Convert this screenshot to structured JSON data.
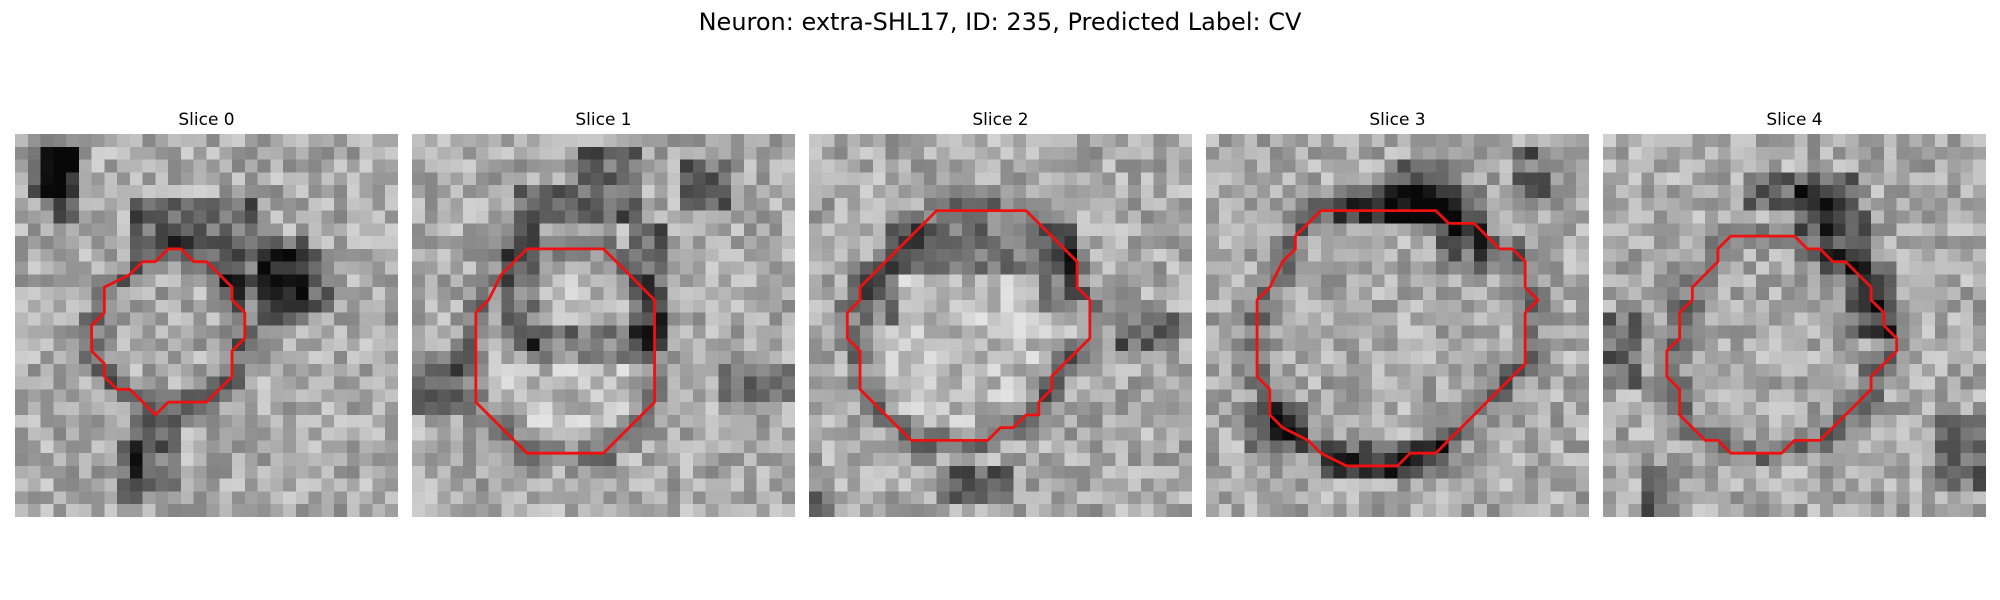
{
  "figure": {
    "title": "Neuron: extra-SHL17, ID: 235, Predicted Label: CV",
    "contour_color": "#ee1111"
  },
  "panels": [
    {
      "title": "Slice 0",
      "image_description_key": "grayscale-em-patch",
      "contour": [
        [
          12,
          9
        ],
        [
          13,
          9
        ],
        [
          14,
          10
        ],
        [
          15,
          10
        ],
        [
          17,
          12
        ],
        [
          17,
          13
        ],
        [
          18,
          14
        ],
        [
          18,
          16
        ],
        [
          17,
          17
        ],
        [
          17,
          19
        ],
        [
          15,
          21
        ],
        [
          12,
          21
        ],
        [
          11,
          22
        ],
        [
          10,
          21
        ],
        [
          9,
          20
        ],
        [
          8,
          20
        ],
        [
          7,
          19
        ],
        [
          7,
          18
        ],
        [
          6,
          17
        ],
        [
          6,
          15
        ],
        [
          7,
          14
        ],
        [
          7,
          12
        ],
        [
          9,
          11
        ],
        [
          10,
          10
        ],
        [
          11,
          10
        ]
      ],
      "darkness": [
        [
          2,
          0,
          2,
          6
        ],
        [
          3,
          1,
          2,
          6
        ],
        [
          1,
          1,
          4,
          4
        ],
        [
          19,
          8,
          4,
          7
        ],
        [
          20,
          9,
          5,
          5
        ],
        [
          16,
          9,
          4,
          4
        ],
        [
          9,
          22,
          4,
          6
        ],
        [
          8,
          24,
          2,
          5
        ],
        [
          9,
          5,
          10,
          4
        ],
        [
          0,
          0,
          0,
          0
        ]
      ]
    },
    {
      "title": "Slice 1",
      "image_description_key": "grayscale-em-patch",
      "contour": [
        [
          9,
          9
        ],
        [
          15,
          9
        ],
        [
          18,
          12
        ],
        [
          19,
          13
        ],
        [
          19,
          21
        ],
        [
          15,
          25
        ],
        [
          12,
          25
        ],
        [
          9,
          25
        ],
        [
          5,
          21
        ],
        [
          5,
          14
        ],
        [
          6,
          13
        ],
        [
          7,
          11
        ],
        [
          8,
          10
        ]
      ],
      "darkness": [
        [
          8,
          4,
          10,
          3
        ],
        [
          7,
          7,
          3,
          10
        ],
        [
          17,
          7,
          3,
          10
        ],
        [
          9,
          15,
          10,
          3
        ],
        [
          0,
          17,
          4,
          5
        ],
        [
          13,
          1,
          5,
          3
        ],
        [
          21,
          2,
          4,
          4
        ],
        [
          24,
          18,
          6,
          3
        ]
      ]
    },
    {
      "title": "Slice 2",
      "image_description_key": "grayscale-em-patch",
      "contour": [
        [
          12,
          6
        ],
        [
          17,
          6
        ],
        [
          18,
          7
        ],
        [
          19,
          8
        ],
        [
          20,
          9
        ],
        [
          21,
          10
        ],
        [
          21,
          12
        ],
        [
          22,
          13
        ],
        [
          22,
          16
        ],
        [
          21,
          17
        ],
        [
          20,
          18
        ],
        [
          19,
          19
        ],
        [
          19,
          20
        ],
        [
          18,
          21
        ],
        [
          18,
          22
        ],
        [
          17,
          22
        ],
        [
          16,
          23
        ],
        [
          15,
          23
        ],
        [
          14,
          24
        ],
        [
          8,
          24
        ],
        [
          7,
          23
        ],
        [
          5,
          21
        ],
        [
          4,
          20
        ],
        [
          4,
          17
        ],
        [
          3,
          16
        ],
        [
          3,
          14
        ],
        [
          4,
          13
        ],
        [
          4,
          12
        ],
        [
          5,
          11
        ],
        [
          6,
          10
        ],
        [
          7,
          9
        ],
        [
          8,
          8
        ],
        [
          9,
          7
        ],
        [
          10,
          6
        ],
        [
          11,
          6
        ]
      ],
      "darkness": [
        [
          6,
          7,
          15,
          4
        ],
        [
          4,
          10,
          3,
          5
        ],
        [
          18,
          10,
          3,
          4
        ],
        [
          0,
          28,
          2,
          2
        ],
        [
          10,
          26,
          6,
          3
        ],
        [
          24,
          14,
          5,
          3
        ]
      ]
    },
    {
      "title": "Slice 3",
      "image_description_key": "grayscale-em-patch",
      "contour": [
        [
          9,
          6
        ],
        [
          18,
          6
        ],
        [
          19,
          7
        ],
        [
          21,
          7
        ],
        [
          22,
          8
        ],
        [
          23,
          9
        ],
        [
          24,
          9
        ],
        [
          25,
          10
        ],
        [
          25,
          12
        ],
        [
          26,
          13
        ],
        [
          25,
          14
        ],
        [
          25,
          18
        ],
        [
          24,
          19
        ],
        [
          23,
          20
        ],
        [
          21,
          22
        ],
        [
          19,
          24
        ],
        [
          18,
          25
        ],
        [
          16,
          25
        ],
        [
          15,
          26
        ],
        [
          11,
          26
        ],
        [
          9,
          25
        ],
        [
          8,
          24
        ],
        [
          6,
          23
        ],
        [
          5,
          22
        ],
        [
          5,
          20
        ],
        [
          4,
          19
        ],
        [
          4,
          13
        ],
        [
          5,
          12
        ],
        [
          6,
          10
        ],
        [
          7,
          9
        ],
        [
          7,
          8
        ],
        [
          8,
          7
        ]
      ],
      "darkness": [
        [
          14,
          2,
          6,
          5
        ],
        [
          10,
          4,
          12,
          3
        ],
        [
          18,
          7,
          4,
          4
        ],
        [
          3,
          21,
          5,
          4
        ],
        [
          9,
          24,
          10,
          3
        ],
        [
          24,
          1,
          3,
          4
        ]
      ]
    },
    {
      "title": "Slice 4",
      "image_description_key": "grayscale-em-patch",
      "contour": [
        [
          10,
          8
        ],
        [
          15,
          8
        ],
        [
          16,
          9
        ],
        [
          17,
          9
        ],
        [
          18,
          10
        ],
        [
          19,
          10
        ],
        [
          20,
          11
        ],
        [
          21,
          12
        ],
        [
          21,
          13
        ],
        [
          22,
          14
        ],
        [
          22,
          15
        ],
        [
          23,
          16
        ],
        [
          23,
          17
        ],
        [
          22,
          18
        ],
        [
          21,
          19
        ],
        [
          21,
          20
        ],
        [
          20,
          21
        ],
        [
          19,
          22
        ],
        [
          18,
          23
        ],
        [
          17,
          24
        ],
        [
          15,
          24
        ],
        [
          14,
          25
        ],
        [
          10,
          25
        ],
        [
          9,
          24
        ],
        [
          8,
          24
        ],
        [
          7,
          23
        ],
        [
          6,
          22
        ],
        [
          6,
          20
        ],
        [
          5,
          19
        ],
        [
          5,
          17
        ],
        [
          6,
          16
        ],
        [
          6,
          14
        ],
        [
          7,
          13
        ],
        [
          7,
          12
        ],
        [
          8,
          11
        ],
        [
          9,
          10
        ],
        [
          9,
          9
        ]
      ],
      "darkness": [
        [
          15,
          4,
          4,
          4
        ],
        [
          17,
          6,
          4,
          5
        ],
        [
          19,
          10,
          4,
          6
        ],
        [
          11,
          3,
          9,
          3
        ],
        [
          26,
          22,
          4,
          6
        ],
        [
          3,
          26,
          3,
          4
        ],
        [
          0,
          14,
          3,
          6
        ]
      ]
    }
  ]
}
